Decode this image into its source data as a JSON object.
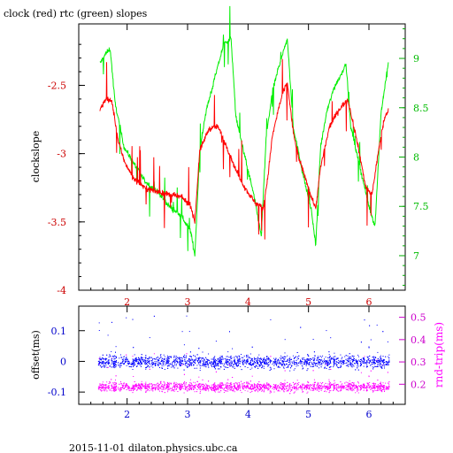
{
  "chart_data": [
    {
      "type": "line",
      "title": "clock (red) rtc (green) slopes",
      "ylabel": "clockslope",
      "xlim": [
        1.2,
        6.6
      ],
      "ylim": [
        -4,
        -2.05
      ],
      "y2lim": [
        6.65,
        9.35
      ],
      "x_ticks": [
        "2",
        "3",
        "4",
        "5",
        "6"
      ],
      "y_ticks": [
        "-2.5",
        "-3",
        "-3.5",
        "-4"
      ],
      "y2_ticks": [
        "9",
        "8.5",
        "8",
        "7.5",
        "7"
      ],
      "colors": {
        "clock": "#ff0000",
        "rtc": "#00ee00",
        "y2axis": "#00cc00",
        "yaxis": "#ff0000"
      },
      "series": [
        {
          "name": "clock",
          "x": [
            1.55,
            1.65,
            1.75,
            1.85,
            1.95,
            2.1,
            2.3,
            2.5,
            2.7,
            2.9,
            3.05,
            3.12,
            3.2,
            3.35,
            3.5,
            3.65,
            3.8,
            3.95,
            4.1,
            4.25,
            4.32,
            4.4,
            4.5,
            4.58,
            4.65,
            4.75,
            4.85,
            4.95,
            5.05,
            5.12,
            5.2,
            5.35,
            5.5,
            5.65,
            5.8,
            5.95,
            6.05,
            6.15,
            6.25,
            6.32
          ],
          "y": [
            -2.68,
            -2.6,
            -2.62,
            -2.9,
            -3.05,
            -3.18,
            -3.25,
            -3.28,
            -3.3,
            -3.32,
            -3.38,
            -3.5,
            -2.98,
            -2.82,
            -2.8,
            -2.95,
            -3.12,
            -3.25,
            -3.35,
            -3.4,
            -3.2,
            -2.88,
            -2.68,
            -2.55,
            -2.48,
            -2.85,
            -3.05,
            -3.18,
            -3.32,
            -3.4,
            -3.1,
            -2.8,
            -2.68,
            -2.6,
            -2.9,
            -3.25,
            -3.3,
            -3.0,
            -2.75,
            -2.68
          ]
        },
        {
          "name": "rtc",
          "x": [
            1.55,
            1.65,
            1.72,
            1.8,
            1.95,
            2.1,
            2.3,
            2.5,
            2.7,
            2.9,
            3.05,
            3.12,
            3.2,
            3.3,
            3.45,
            3.6,
            3.72,
            3.8,
            3.95,
            4.1,
            4.22,
            4.3,
            4.4,
            4.5,
            4.6,
            4.65,
            4.75,
            4.9,
            5.05,
            5.12,
            5.2,
            5.3,
            5.42,
            5.55,
            5.62,
            5.7,
            5.85,
            6.0,
            6.1,
            6.2,
            6.32
          ],
          "y": [
            8.95,
            9.05,
            9.1,
            8.55,
            8.1,
            7.95,
            7.75,
            7.65,
            7.5,
            7.4,
            7.25,
            7.0,
            8.05,
            8.45,
            8.8,
            9.15,
            9.2,
            8.4,
            8.0,
            7.6,
            7.2,
            8.2,
            8.65,
            8.9,
            9.1,
            9.2,
            8.3,
            7.85,
            7.45,
            7.1,
            8.1,
            8.45,
            8.7,
            8.85,
            8.95,
            8.3,
            7.9,
            7.5,
            7.3,
            8.45,
            8.95
          ]
        }
      ]
    },
    {
      "type": "scatter",
      "ylabel": "offset(ms)",
      "y2label": "rnd-trip(ms)",
      "xlim": [
        1.2,
        6.6
      ],
      "ylim": [
        -0.14,
        0.18
      ],
      "y2lim": [
        0.11,
        0.55
      ],
      "x_ticks": [
        "2",
        "3",
        "4",
        "5",
        "6"
      ],
      "y_ticks": [
        "0.1",
        "0",
        "-0.1"
      ],
      "y2_ticks": [
        "0.5",
        "0.4",
        "0.3",
        "0.2"
      ],
      "colors": {
        "offset": "#0000ff",
        "rnd_trip": "#ff00ff"
      },
      "series": [
        {
          "name": "offset",
          "x_range": [
            1.52,
            6.33
          ],
          "center": 0.0,
          "spread": 0.035
        },
        {
          "name": "rnd-trip",
          "x_range": [
            1.52,
            6.33
          ],
          "center": 0.19,
          "spread": 0.035
        }
      ]
    }
  ],
  "footer": "2015-11-01 dilaton.physics.ubc.ca"
}
